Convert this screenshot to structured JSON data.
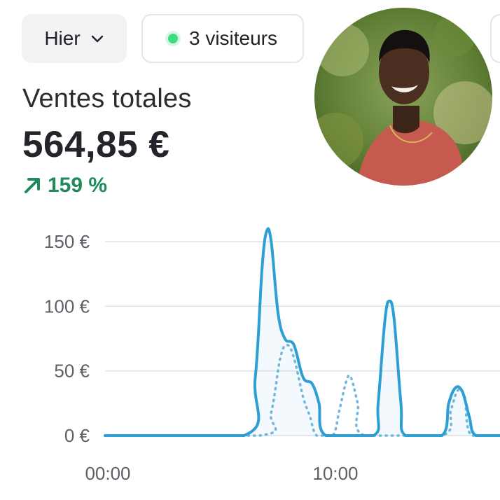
{
  "filters": {
    "period_label": "Hier",
    "visitors_label": "3 visiteurs"
  },
  "summary": {
    "title": "Ventes totales",
    "value": "564,85 €",
    "change": "159 %"
  },
  "colors": {
    "accent": "#2e9fd4",
    "positive": "#1f8a5b",
    "live_dot": "#3ddc7f"
  },
  "icons": {
    "period_dropdown": "chevron-down-icon",
    "visitors_status": "live-dot-icon",
    "change": "arrow-up-right-icon"
  },
  "chart_data": {
    "type": "line",
    "y_ticks": [
      "0 €",
      "50 €",
      "100 €",
      "150 €"
    ],
    "x_ticks": [
      "00:00",
      "10:00"
    ],
    "ylim": [
      0,
      150
    ],
    "grid": true,
    "series": [
      {
        "style": "solid",
        "color": "#2e9fd4",
        "points": [
          [
            0,
            0
          ],
          [
            6.1,
            0
          ],
          [
            6.6,
            45
          ],
          [
            6.9,
            130
          ],
          [
            7.1,
            158
          ],
          [
            7.3,
            150
          ],
          [
            7.6,
            95
          ],
          [
            7.9,
            75
          ],
          [
            8.3,
            70
          ],
          [
            8.7,
            45
          ],
          [
            9.1,
            40
          ],
          [
            9.4,
            25
          ],
          [
            9.7,
            0
          ],
          [
            11.8,
            0
          ],
          [
            12.0,
            25
          ],
          [
            12.3,
            90
          ],
          [
            12.5,
            104
          ],
          [
            12.7,
            90
          ],
          [
            13.0,
            25
          ],
          [
            13.2,
            0
          ],
          [
            14.8,
            0
          ],
          [
            15.1,
            25
          ],
          [
            15.4,
            37
          ],
          [
            15.7,
            34
          ],
          [
            16.0,
            15
          ],
          [
            16.3,
            0
          ],
          [
            17.5,
            0
          ]
        ]
      },
      {
        "style": "dotted",
        "color": "#6fb7dd",
        "points": [
          [
            0,
            0
          ],
          [
            6.8,
            0
          ],
          [
            7.3,
            18
          ],
          [
            7.7,
            60
          ],
          [
            8.0,
            70
          ],
          [
            8.3,
            60
          ],
          [
            8.7,
            30
          ],
          [
            9.0,
            15
          ],
          [
            9.3,
            0
          ],
          [
            10.0,
            0
          ],
          [
            10.3,
            20
          ],
          [
            10.6,
            42
          ],
          [
            10.8,
            45
          ],
          [
            11.1,
            25
          ],
          [
            11.4,
            0
          ],
          [
            14.8,
            0
          ],
          [
            15.2,
            20
          ],
          [
            15.5,
            35
          ],
          [
            15.8,
            30
          ],
          [
            16.1,
            0
          ],
          [
            17.5,
            0
          ]
        ]
      }
    ]
  }
}
